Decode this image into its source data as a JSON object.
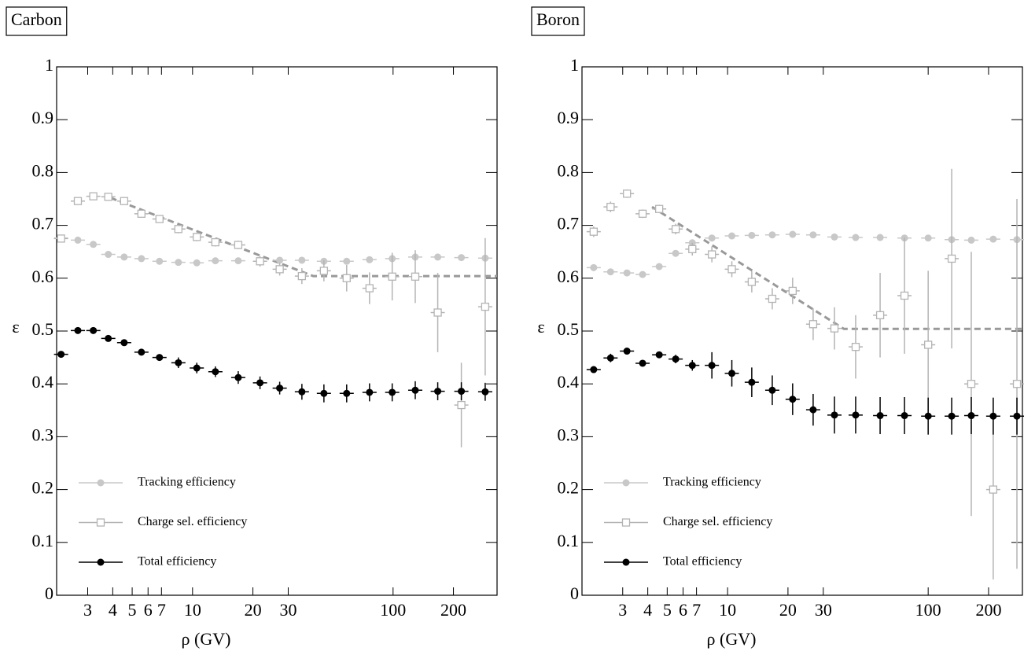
{
  "chart_data": [
    {
      "type": "scatter",
      "title": "Carbon",
      "xlabel": "ρ (GV)",
      "ylabel": "ε",
      "xlog": true,
      "xlim": [
        2.1,
        330
      ],
      "ylim": [
        0,
        1
      ],
      "xticks": [
        3,
        4,
        5,
        6,
        7,
        10,
        20,
        30,
        100,
        200
      ],
      "yticks": [
        0,
        0.1,
        0.2,
        0.3,
        0.4,
        0.5,
        0.6,
        0.7,
        0.8,
        0.9,
        1
      ],
      "legend": "lower left",
      "x": [
        2.21,
        2.68,
        3.2,
        3.8,
        4.56,
        5.56,
        6.84,
        8.5,
        10.5,
        13.0,
        16.9,
        21.7,
        27.2,
        35.1,
        45.2,
        58.7,
        76.3,
        99,
        129,
        167,
        219,
        288
      ],
      "series": [
        {
          "name": "Tracking efficiency",
          "color": "#c8c8c8",
          "marker": "circle",
          "values": [
            0.676,
            0.672,
            0.664,
            0.645,
            0.64,
            0.637,
            0.632,
            0.63,
            0.629,
            0.633,
            0.633,
            0.632,
            0.634,
            0.634,
            0.632,
            0.632,
            0.635,
            0.637,
            0.64,
            0.64,
            0.639,
            0.638
          ]
        },
        {
          "name": "Charge sel. efficiency",
          "color": "#b4b4b4",
          "marker": "square",
          "values": [
            0.675,
            0.746,
            0.755,
            0.754,
            0.746,
            0.722,
            0.712,
            0.693,
            0.678,
            0.668,
            0.663,
            0.632,
            0.617,
            0.604,
            0.614,
            0.6,
            0.581,
            0.603,
            0.603,
            0.535,
            0.36,
            0.546
          ],
          "errors": [
            0.005,
            0.005,
            0.005,
            0.005,
            0.005,
            0.005,
            0.005,
            0.008,
            0.008,
            0.008,
            0.008,
            0.01,
            0.012,
            0.015,
            0.02,
            0.025,
            0.03,
            0.045,
            0.05,
            0.075,
            0.08,
            0.13
          ]
        },
        {
          "name": "Total efficiency",
          "color": "#000000",
          "marker": "circle",
          "values": [
            0.456,
            0.501,
            0.501,
            0.486,
            0.478,
            0.46,
            0.45,
            0.44,
            0.43,
            0.423,
            0.412,
            0.402,
            0.392,
            0.385,
            0.382,
            0.382,
            0.384,
            0.384,
            0.388,
            0.386,
            0.386,
            0.385
          ],
          "errors": [
            0.003,
            0.003,
            0.003,
            0.004,
            0.004,
            0.005,
            0.006,
            0.01,
            0.01,
            0.01,
            0.012,
            0.012,
            0.012,
            0.015,
            0.017,
            0.017,
            0.017,
            0.017,
            0.017,
            0.017,
            0.017,
            0.017
          ]
        }
      ],
      "fit": {
        "color": "#999999",
        "x": [
          3.9,
          40,
          330
        ],
        "values": [
          0.752,
          0.604,
          0.604
        ]
      }
    },
    {
      "type": "scatter",
      "title": "Boron",
      "xlabel": "ρ (GV)",
      "ylabel": "ε",
      "xlog": true,
      "xlim": [
        1.88,
        295
      ],
      "ylim": [
        0,
        1
      ],
      "xticks": [
        3,
        4,
        5,
        6,
        7,
        10,
        20,
        30,
        100,
        200
      ],
      "yticks": [
        0,
        0.1,
        0.2,
        0.3,
        0.4,
        0.5,
        0.6,
        0.7,
        0.8,
        0.9,
        1
      ],
      "legend": "lower left",
      "x": [
        2.15,
        2.61,
        3.15,
        3.77,
        4.56,
        5.51,
        6.67,
        8.35,
        10.5,
        13.2,
        16.7,
        21.1,
        26.7,
        34.1,
        43.5,
        57.6,
        76.2,
        100,
        131,
        164,
        211,
        277
      ],
      "series": [
        {
          "name": "Tracking efficiency",
          "color": "#c8c8c8",
          "marker": "circle",
          "values": [
            0.62,
            0.612,
            0.61,
            0.607,
            0.622,
            0.647,
            0.667,
            0.676,
            0.68,
            0.681,
            0.682,
            0.683,
            0.682,
            0.678,
            0.677,
            0.677,
            0.676,
            0.676,
            0.673,
            0.672,
            0.674,
            0.673
          ]
        },
        {
          "name": "Charge sel. efficiency",
          "color": "#b4b4b4",
          "marker": "square",
          "values": [
            0.688,
            0.735,
            0.76,
            0.722,
            0.731,
            0.693,
            0.655,
            0.645,
            0.617,
            0.593,
            0.561,
            0.576,
            0.513,
            0.505,
            0.47,
            0.53,
            0.567,
            0.474,
            0.637,
            0.4,
            0.2,
            0.4
          ],
          "errors": [
            0.01,
            0.01,
            0.008,
            0.008,
            0.008,
            0.01,
            0.012,
            0.015,
            0.015,
            0.02,
            0.02,
            0.025,
            0.03,
            0.04,
            0.06,
            0.08,
            0.11,
            0.14,
            0.17,
            0.25,
            0.17,
            0.35
          ]
        },
        {
          "name": "Total efficiency",
          "color": "#000000",
          "marker": "circle",
          "values": [
            0.427,
            0.449,
            0.462,
            0.439,
            0.455,
            0.447,
            0.435,
            0.435,
            0.42,
            0.403,
            0.388,
            0.371,
            0.351,
            0.341,
            0.341,
            0.34,
            0.34,
            0.339,
            0.339,
            0.34,
            0.339,
            0.339
          ],
          "errors": [
            0.006,
            0.008,
            0.006,
            0.005,
            0.005,
            0.008,
            0.01,
            0.025,
            0.025,
            0.028,
            0.028,
            0.03,
            0.03,
            0.035,
            0.035,
            0.035,
            0.035,
            0.035,
            0.035,
            0.035,
            0.035,
            0.035
          ]
        }
      ],
      "fit": {
        "color": "#999999",
        "x": [
          4.2,
          38,
          295
        ],
        "values": [
          0.735,
          0.504,
          0.504
        ]
      }
    }
  ]
}
